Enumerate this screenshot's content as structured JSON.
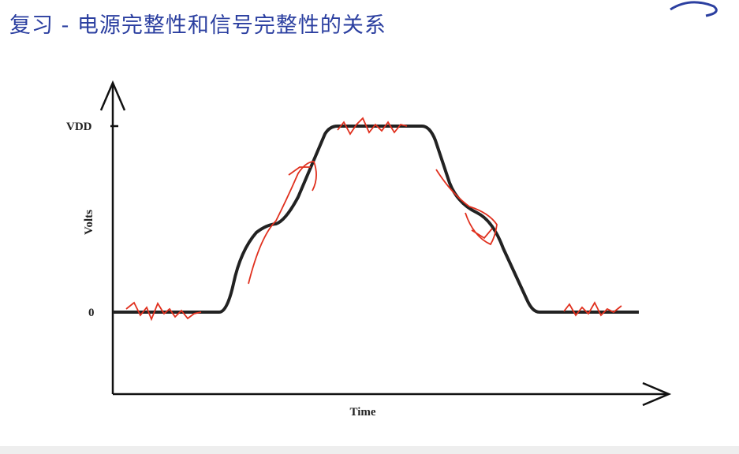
{
  "header": {
    "title": "复习 - 电源完整性和信号完整性的关系"
  },
  "diagram": {
    "y_axis_label": "Volts",
    "x_axis_label": "Time",
    "level_high": "VDD",
    "level_low": "0"
  }
}
